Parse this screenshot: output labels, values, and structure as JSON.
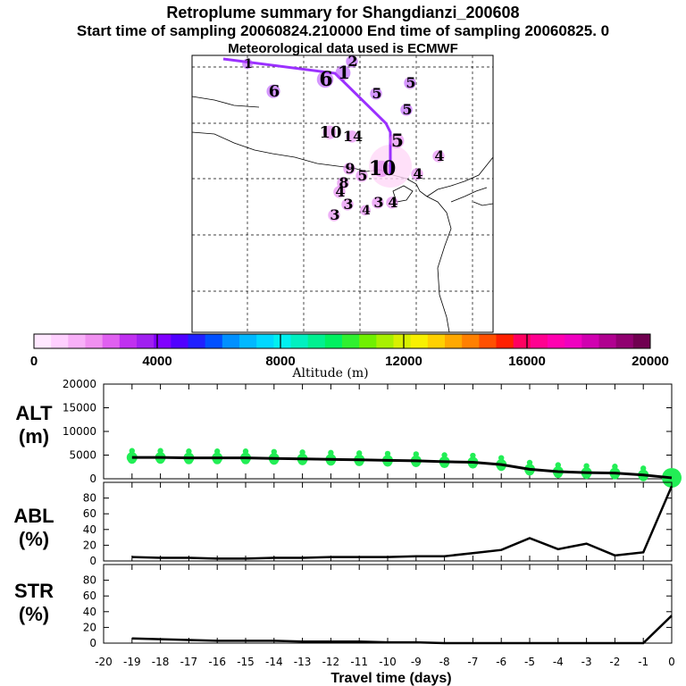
{
  "header": {
    "title": "Retroplume summary for Shangdianzi_200608",
    "sampling": "Start time of sampling 20060824.210000     End time of sampling 20060825.     0",
    "meteo": "Meteorological data used is ECMWF"
  },
  "colors": {
    "trajectory": "#9b30ff",
    "alt_points": "#22ee55",
    "line": "#000000"
  },
  "map": {
    "labels": [
      "1",
      "6",
      "6",
      "1",
      "2",
      "5",
      "5",
      "5",
      "10",
      "14",
      "5",
      "4",
      "4",
      "9",
      "5",
      "8",
      "4",
      "10",
      "4",
      "3",
      "4",
      "3",
      "3"
    ]
  },
  "colorbar": {
    "label": "Altitude (m)",
    "ticks": [
      "0",
      "4000",
      "8000",
      "12000",
      "16000",
      "20000"
    ],
    "colors": [
      "#ffe8ff",
      "#ffd0ff",
      "#f8b0f8",
      "#f090f0",
      "#e060f0",
      "#c030f0",
      "#a020f0",
      "#8000ff",
      "#5000ff",
      "#2020ff",
      "#0050ff",
      "#0090ff",
      "#00b8ff",
      "#00d8ff",
      "#00f0f0",
      "#00f0c0",
      "#00f090",
      "#00f060",
      "#30f030",
      "#70f000",
      "#a8f000",
      "#d8f000",
      "#f8f000",
      "#ffd000",
      "#ffa800",
      "#ff8000",
      "#ff5000",
      "#ff2000",
      "#ff0060",
      "#ff0090",
      "#ff00b0",
      "#f000c0",
      "#d000b0",
      "#b00090",
      "#900070",
      "#700050"
    ]
  },
  "chart_data": [
    {
      "type": "line",
      "panel": "ALT",
      "ylabel": "ALT (m)",
      "ylim": [
        0,
        20000
      ],
      "yticks": [
        "20000",
        "15000",
        "10000",
        "5000",
        "0"
      ],
      "x": [
        -19,
        -18,
        -17,
        -16,
        -15,
        -14,
        -13,
        -12,
        -11,
        -10,
        -9,
        -8,
        -7,
        -6,
        -5,
        -4,
        -3,
        -2,
        -1,
        0
      ],
      "values": [
        4500,
        4500,
        4400,
        4400,
        4400,
        4300,
        4200,
        4100,
        4000,
        3900,
        3800,
        3600,
        3500,
        3000,
        2000,
        1500,
        1300,
        1200,
        800,
        200
      ]
    },
    {
      "type": "line",
      "panel": "ABL",
      "ylabel": "ABL (%)",
      "ylim": [
        0,
        100
      ],
      "yticks": [
        "80",
        "60",
        "40",
        "20",
        "0"
      ],
      "x": [
        -19,
        -18,
        -17,
        -16,
        -15,
        -14,
        -13,
        -12,
        -11,
        -10,
        -9,
        -8,
        -7,
        -6,
        -5,
        -4,
        -3,
        -2,
        -1,
        0
      ],
      "values": [
        5,
        4,
        4,
        3,
        3,
        4,
        4,
        5,
        5,
        5,
        6,
        6,
        10,
        14,
        29,
        15,
        22,
        7,
        11,
        95
      ]
    },
    {
      "type": "line",
      "panel": "STR",
      "ylabel": "STR (%)",
      "ylim": [
        0,
        100
      ],
      "yticks": [
        "80",
        "60",
        "40",
        "20",
        "0"
      ],
      "x": [
        -19,
        -18,
        -17,
        -16,
        -15,
        -14,
        -13,
        -12,
        -11,
        -10,
        -9,
        -8,
        -7,
        -6,
        -5,
        -4,
        -3,
        -2,
        -1,
        0
      ],
      "values": [
        6,
        5,
        4,
        3,
        3,
        3,
        2,
        2,
        2,
        1,
        1,
        0,
        0,
        0,
        0,
        0,
        0,
        0,
        0,
        35
      ]
    }
  ],
  "xaxis": {
    "label": "Travel time (days)",
    "ticks": [
      "-20",
      "-19",
      "-18",
      "-17",
      "-16",
      "-15",
      "-14",
      "-13",
      "-12",
      "-11",
      "-10",
      "-9",
      "-8",
      "-7",
      "-6",
      "-5",
      "-4",
      "-3",
      "-2",
      "-1",
      "0"
    ]
  }
}
